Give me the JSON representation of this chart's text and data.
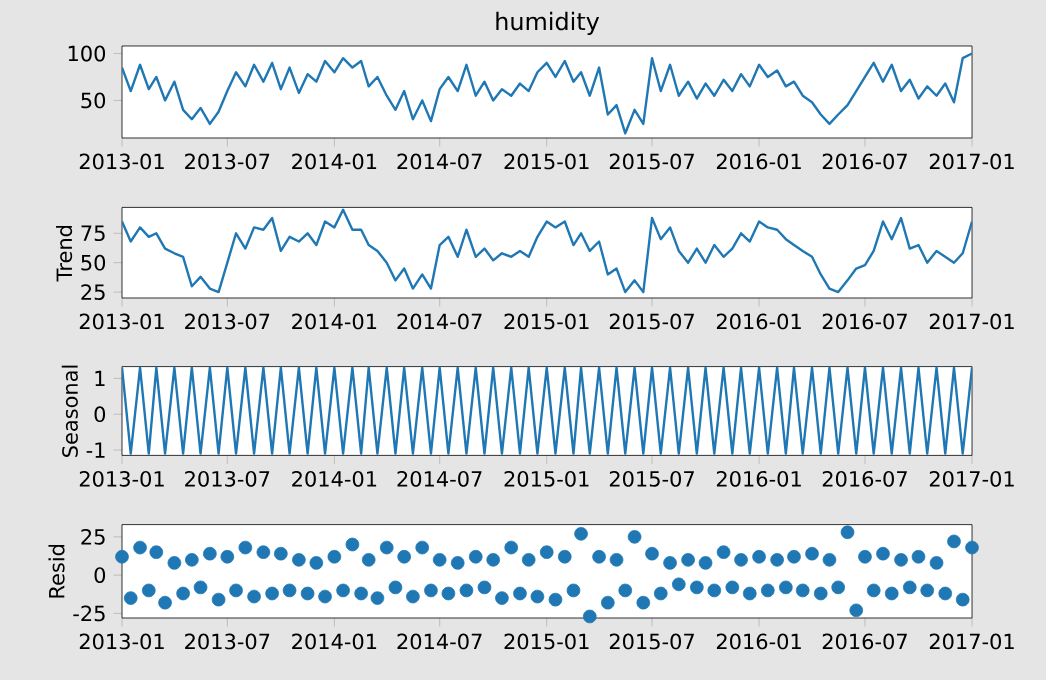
{
  "chart_data": [
    {
      "type": "line",
      "title": "humidity",
      "color": "#1f77b4",
      "x": [
        "2013-01-01",
        "2013-01-16",
        "2013-02-01",
        "2013-02-16",
        "2013-03-01",
        "2013-03-16",
        "2013-04-01",
        "2013-04-16",
        "2013-05-01",
        "2013-05-16",
        "2013-06-01",
        "2013-06-16",
        "2013-07-01",
        "2013-07-16",
        "2013-08-01",
        "2013-08-16",
        "2013-09-01",
        "2013-09-16",
        "2013-10-01",
        "2013-10-16",
        "2013-11-01",
        "2013-11-16",
        "2013-12-01",
        "2013-12-16",
        "2014-01-01",
        "2014-01-16",
        "2014-02-01",
        "2014-02-16",
        "2014-03-01",
        "2014-03-16",
        "2014-04-01",
        "2014-04-16",
        "2014-05-01",
        "2014-05-16",
        "2014-06-01",
        "2014-06-16",
        "2014-07-01",
        "2014-07-16",
        "2014-08-01",
        "2014-08-16",
        "2014-09-01",
        "2014-09-16",
        "2014-10-01",
        "2014-10-16",
        "2014-11-01",
        "2014-11-16",
        "2014-12-01",
        "2014-12-16",
        "2015-01-01",
        "2015-01-16",
        "2015-02-01",
        "2015-02-16",
        "2015-03-01",
        "2015-03-16",
        "2015-04-01",
        "2015-04-16",
        "2015-05-01",
        "2015-05-16",
        "2015-06-01",
        "2015-06-16",
        "2015-07-01",
        "2015-07-16",
        "2015-08-01",
        "2015-08-16",
        "2015-09-01",
        "2015-09-16",
        "2015-10-01",
        "2015-10-16",
        "2015-11-01",
        "2015-11-16",
        "2015-12-01",
        "2015-12-16",
        "2016-01-01",
        "2016-01-16",
        "2016-02-01",
        "2016-02-16",
        "2016-03-01",
        "2016-03-16",
        "2016-04-01",
        "2016-04-16",
        "2016-05-01",
        "2016-05-16",
        "2016-06-01",
        "2016-06-16",
        "2016-07-01",
        "2016-07-16",
        "2016-08-01",
        "2016-08-16",
        "2016-09-01",
        "2016-09-16",
        "2016-10-01",
        "2016-10-16",
        "2016-11-01",
        "2016-11-16",
        "2016-12-01",
        "2016-12-16",
        "2017-01-01"
      ],
      "values": [
        85,
        60,
        88,
        62,
        75,
        50,
        70,
        40,
        30,
        42,
        25,
        38,
        60,
        80,
        65,
        88,
        70,
        90,
        62,
        85,
        58,
        78,
        70,
        92,
        80,
        95,
        85,
        92,
        65,
        75,
        55,
        40,
        60,
        30,
        50,
        28,
        62,
        75,
        60,
        88,
        55,
        70,
        50,
        62,
        55,
        68,
        60,
        80,
        90,
        75,
        92,
        70,
        80,
        55,
        85,
        35,
        45,
        15,
        40,
        25,
        95,
        60,
        88,
        55,
        70,
        52,
        68,
        55,
        72,
        60,
        78,
        65,
        88,
        75,
        82,
        65,
        70,
        55,
        48,
        35,
        25,
        35,
        45,
        60,
        75,
        90,
        70,
        88,
        60,
        72,
        52,
        65,
        55,
        68,
        48,
        95,
        100
      ],
      "xlim": [
        "2013-01-01",
        "2017-01-01"
      ],
      "xticks": [
        "2013-01",
        "2013-07",
        "2014-01",
        "2014-07",
        "2015-01",
        "2015-07",
        "2016-01",
        "2016-07",
        "2017-01"
      ],
      "ylim": [
        10,
        108
      ],
      "yticks": [
        50,
        100
      ]
    },
    {
      "type": "line",
      "ylabel": "Trend",
      "color": "#1f77b4",
      "x": [
        "2013-01-01",
        "2013-01-16",
        "2013-02-01",
        "2013-02-16",
        "2013-03-01",
        "2013-03-16",
        "2013-04-01",
        "2013-04-16",
        "2013-05-01",
        "2013-05-16",
        "2013-06-01",
        "2013-06-16",
        "2013-07-01",
        "2013-07-16",
        "2013-08-01",
        "2013-08-16",
        "2013-09-01",
        "2013-09-16",
        "2013-10-01",
        "2013-10-16",
        "2013-11-01",
        "2013-11-16",
        "2013-12-01",
        "2013-12-16",
        "2014-01-01",
        "2014-01-16",
        "2014-02-01",
        "2014-02-16",
        "2014-03-01",
        "2014-03-16",
        "2014-04-01",
        "2014-04-16",
        "2014-05-01",
        "2014-05-16",
        "2014-06-01",
        "2014-06-16",
        "2014-07-01",
        "2014-07-16",
        "2014-08-01",
        "2014-08-16",
        "2014-09-01",
        "2014-09-16",
        "2014-10-01",
        "2014-10-16",
        "2014-11-01",
        "2014-11-16",
        "2014-12-01",
        "2014-12-16",
        "2015-01-01",
        "2015-01-16",
        "2015-02-01",
        "2015-02-16",
        "2015-03-01",
        "2015-03-16",
        "2015-04-01",
        "2015-04-16",
        "2015-05-01",
        "2015-05-16",
        "2015-06-01",
        "2015-06-16",
        "2015-07-01",
        "2015-07-16",
        "2015-08-01",
        "2015-08-16",
        "2015-09-01",
        "2015-09-16",
        "2015-10-01",
        "2015-10-16",
        "2015-11-01",
        "2015-11-16",
        "2015-12-01",
        "2015-12-16",
        "2016-01-01",
        "2016-01-16",
        "2016-02-01",
        "2016-02-16",
        "2016-03-01",
        "2016-03-16",
        "2016-04-01",
        "2016-04-16",
        "2016-05-01",
        "2016-05-16",
        "2016-06-01",
        "2016-06-16",
        "2016-07-01",
        "2016-07-16",
        "2016-08-01",
        "2016-08-16",
        "2016-09-01",
        "2016-09-16",
        "2016-10-01",
        "2016-10-16",
        "2016-11-01",
        "2016-11-16",
        "2016-12-01",
        "2016-12-16",
        "2017-01-01"
      ],
      "values": [
        85,
        68,
        80,
        72,
        75,
        62,
        58,
        55,
        30,
        38,
        28,
        25,
        50,
        75,
        62,
        80,
        78,
        88,
        60,
        72,
        68,
        75,
        65,
        85,
        80,
        95,
        78,
        78,
        65,
        60,
        50,
        35,
        45,
        28,
        40,
        28,
        65,
        72,
        55,
        78,
        55,
        62,
        52,
        58,
        55,
        60,
        55,
        72,
        85,
        80,
        85,
        65,
        75,
        60,
        68,
        40,
        45,
        25,
        35,
        25,
        88,
        70,
        80,
        60,
        50,
        62,
        50,
        65,
        55,
        62,
        75,
        68,
        85,
        80,
        78,
        70,
        65,
        60,
        55,
        40,
        28,
        25,
        35,
        45,
        48,
        60,
        85,
        70,
        88,
        62,
        65,
        50,
        60,
        55,
        50,
        58,
        85
      ],
      "xlim": [
        "2013-01-01",
        "2017-01-01"
      ],
      "xticks": [
        "2013-01",
        "2013-07",
        "2014-01",
        "2014-07",
        "2015-01",
        "2015-07",
        "2016-01",
        "2016-07",
        "2017-01"
      ],
      "ylim": [
        20,
        97
      ],
      "yticks": [
        25,
        50,
        75
      ]
    },
    {
      "type": "line",
      "ylabel": "Seasonal",
      "color": "#1f77b4",
      "x": [
        "2013-01-01",
        "2013-01-16",
        "2013-02-01",
        "2013-02-16",
        "2013-03-01",
        "2013-03-16",
        "2013-04-01",
        "2013-04-16",
        "2013-05-01",
        "2013-05-16",
        "2013-06-01",
        "2013-06-16",
        "2013-07-01",
        "2013-07-16",
        "2013-08-01",
        "2013-08-16",
        "2013-09-01",
        "2013-09-16",
        "2013-10-01",
        "2013-10-16",
        "2013-11-01",
        "2013-11-16",
        "2013-12-01",
        "2013-12-16",
        "2014-01-01",
        "2014-01-16",
        "2014-02-01",
        "2014-02-16",
        "2014-03-01",
        "2014-03-16",
        "2014-04-01",
        "2014-04-16",
        "2014-05-01",
        "2014-05-16",
        "2014-06-01",
        "2014-06-16",
        "2014-07-01",
        "2014-07-16",
        "2014-08-01",
        "2014-08-16",
        "2014-09-01",
        "2014-09-16",
        "2014-10-01",
        "2014-10-16",
        "2014-11-01",
        "2014-11-16",
        "2014-12-01",
        "2014-12-16",
        "2015-01-01",
        "2015-01-16",
        "2015-02-01",
        "2015-02-16",
        "2015-03-01",
        "2015-03-16",
        "2015-04-01",
        "2015-04-16",
        "2015-05-01",
        "2015-05-16",
        "2015-06-01",
        "2015-06-16",
        "2015-07-01",
        "2015-07-16",
        "2015-08-01",
        "2015-08-16",
        "2015-09-01",
        "2015-09-16",
        "2015-10-01",
        "2015-10-16",
        "2015-11-01",
        "2015-11-16",
        "2015-12-01",
        "2015-12-16",
        "2016-01-01",
        "2016-01-16",
        "2016-02-01",
        "2016-02-16",
        "2016-03-01",
        "2016-03-16",
        "2016-04-01",
        "2016-04-16",
        "2016-05-01",
        "2016-05-16",
        "2016-06-01",
        "2016-06-16",
        "2016-07-01",
        "2016-07-16",
        "2016-08-01",
        "2016-08-16",
        "2016-09-01",
        "2016-09-16",
        "2016-10-01",
        "2016-10-16",
        "2016-11-01",
        "2016-11-16",
        "2016-12-01",
        "2016-12-16",
        "2017-01-01"
      ],
      "values": [
        1.3,
        -1.1,
        1.3,
        -1.1,
        1.3,
        -1.1,
        1.3,
        -1.1,
        1.3,
        -1.1,
        1.3,
        -1.1,
        1.3,
        -1.1,
        1.3,
        -1.1,
        1.3,
        -1.1,
        1.3,
        -1.1,
        1.3,
        -1.1,
        1.3,
        -1.1,
        1.3,
        -1.1,
        1.3,
        -1.1,
        1.3,
        -1.1,
        1.3,
        -1.1,
        1.3,
        -1.1,
        1.3,
        -1.1,
        1.3,
        -1.1,
        1.3,
        -1.1,
        1.3,
        -1.1,
        1.3,
        -1.1,
        1.3,
        -1.1,
        1.3,
        -1.1,
        1.3,
        -1.1,
        1.3,
        -1.1,
        1.3,
        -1.1,
        1.3,
        -1.1,
        1.3,
        -1.1,
        1.3,
        -1.1,
        1.3,
        -1.1,
        1.3,
        -1.1,
        1.3,
        -1.1,
        1.3,
        -1.1,
        1.3,
        -1.1,
        1.3,
        -1.1,
        1.3,
        -1.1,
        1.3,
        -1.1,
        1.3,
        -1.1,
        1.3,
        -1.1,
        1.3,
        -1.1,
        1.3,
        -1.1,
        1.3,
        -1.1,
        1.3,
        -1.1,
        1.3,
        -1.1,
        1.3,
        -1.1,
        1.3,
        -1.1,
        1.3,
        -1.1,
        1.3
      ],
      "xlim": [
        "2013-01-01",
        "2017-01-01"
      ],
      "xticks": [
        "2013-01",
        "2013-07",
        "2014-01",
        "2014-07",
        "2015-01",
        "2015-07",
        "2016-01",
        "2016-07",
        "2017-01"
      ],
      "ylim": [
        -1.15,
        1.33
      ],
      "yticks": [
        -1,
        0,
        1
      ]
    },
    {
      "type": "scatter",
      "ylabel": "Resid",
      "color": "#1f77b4",
      "marker": "circle",
      "x": [
        "2013-01-01",
        "2013-01-16",
        "2013-02-01",
        "2013-02-16",
        "2013-03-01",
        "2013-03-16",
        "2013-04-01",
        "2013-04-16",
        "2013-05-01",
        "2013-05-16",
        "2013-06-01",
        "2013-06-16",
        "2013-07-01",
        "2013-07-16",
        "2013-08-01",
        "2013-08-16",
        "2013-09-01",
        "2013-09-16",
        "2013-10-01",
        "2013-10-16",
        "2013-11-01",
        "2013-11-16",
        "2013-12-01",
        "2013-12-16",
        "2014-01-01",
        "2014-01-16",
        "2014-02-01",
        "2014-02-16",
        "2014-03-01",
        "2014-03-16",
        "2014-04-01",
        "2014-04-16",
        "2014-05-01",
        "2014-05-16",
        "2014-06-01",
        "2014-06-16",
        "2014-07-01",
        "2014-07-16",
        "2014-08-01",
        "2014-08-16",
        "2014-09-01",
        "2014-09-16",
        "2014-10-01",
        "2014-10-16",
        "2014-11-01",
        "2014-11-16",
        "2014-12-01",
        "2014-12-16",
        "2015-01-01",
        "2015-01-16",
        "2015-02-01",
        "2015-02-16",
        "2015-03-01",
        "2015-03-16",
        "2015-04-01",
        "2015-04-16",
        "2015-05-01",
        "2015-05-16",
        "2015-06-01",
        "2015-06-16",
        "2015-07-01",
        "2015-07-16",
        "2015-08-01",
        "2015-08-16",
        "2015-09-01",
        "2015-09-16",
        "2015-10-01",
        "2015-10-16",
        "2015-11-01",
        "2015-11-16",
        "2015-12-01",
        "2015-12-16",
        "2016-01-01",
        "2016-01-16",
        "2016-02-01",
        "2016-02-16",
        "2016-03-01",
        "2016-03-16",
        "2016-04-01",
        "2016-04-16",
        "2016-05-01",
        "2016-05-16",
        "2016-06-01",
        "2016-06-16",
        "2016-07-01",
        "2016-07-16",
        "2016-08-01",
        "2016-08-16",
        "2016-09-01",
        "2016-09-16",
        "2016-10-01",
        "2016-10-16",
        "2016-11-01",
        "2016-11-16",
        "2016-12-01",
        "2016-12-16",
        "2017-01-01"
      ],
      "values": [
        12,
        -15,
        18,
        -10,
        15,
        -18,
        8,
        -12,
        10,
        -8,
        14,
        -16,
        12,
        -10,
        18,
        -14,
        15,
        -12,
        14,
        -10,
        10,
        -12,
        8,
        -14,
        12,
        -10,
        20,
        -12,
        10,
        -15,
        18,
        -8,
        12,
        -14,
        18,
        -10,
        10,
        -12,
        8,
        -10,
        12,
        -8,
        10,
        -15,
        18,
        -12,
        10,
        -14,
        15,
        -16,
        12,
        -10,
        27,
        -27,
        12,
        -18,
        10,
        -10,
        25,
        -18,
        14,
        -12,
        8,
        -6,
        10,
        -8,
        8,
        -10,
        15,
        -8,
        10,
        -12,
        12,
        -10,
        10,
        -8,
        12,
        -10,
        14,
        -12,
        10,
        -8,
        28,
        -23,
        12,
        -10,
        14,
        -12,
        10,
        -8,
        12,
        -10,
        8,
        -12,
        22,
        -16,
        18
      ],
      "xlim": [
        "2013-01-01",
        "2017-01-01"
      ],
      "xticks": [
        "2013-01",
        "2013-07",
        "2014-01",
        "2014-07",
        "2015-01",
        "2015-07",
        "2016-01",
        "2016-07",
        "2017-01"
      ],
      "ylim": [
        -28,
        33
      ],
      "yticks": [
        -25,
        0,
        25
      ]
    }
  ]
}
